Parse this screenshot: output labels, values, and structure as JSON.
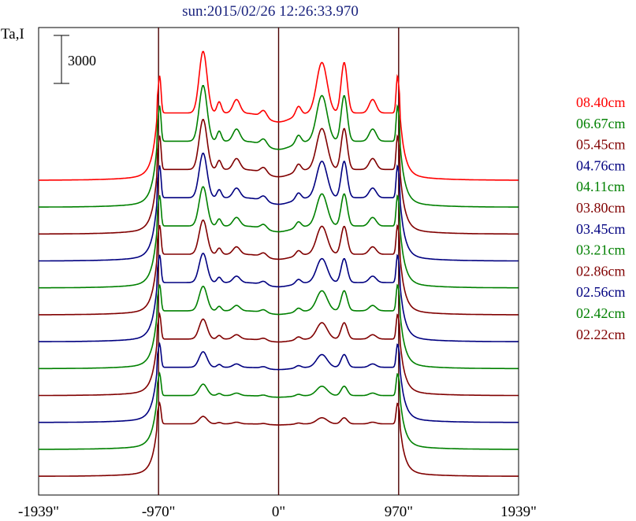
{
  "chart_data": {
    "type": "line",
    "title": "sun:2015/02/26 12:26:33.970",
    "ylabel": "Ta,I",
    "scale_bar_label": "3000",
    "x_ticks": [
      {
        "value": -1939,
        "label": "-1939\""
      },
      {
        "value": -970,
        "label": "-970\""
      },
      {
        "value": 0,
        "label": "0\""
      },
      {
        "value": 970,
        "label": "970\""
      },
      {
        "value": 1939,
        "label": "1939\""
      }
    ],
    "xlim": [
      -1939,
      1939
    ],
    "vertical_lines": [
      -970,
      0,
      970
    ],
    "series": [
      {
        "name": "08.40cm",
        "color": "#ff0000"
      },
      {
        "name": "06.67cm",
        "color": "#008000"
      },
      {
        "name": "05.45cm",
        "color": "#800000"
      },
      {
        "name": "04.76cm",
        "color": "#000080"
      },
      {
        "name": "04.11cm",
        "color": "#008000"
      },
      {
        "name": "03.80cm",
        "color": "#800000"
      },
      {
        "name": "03.45cm",
        "color": "#000080"
      },
      {
        "name": "03.21cm",
        "color": "#008000"
      },
      {
        "name": "02.86cm",
        "color": "#800000"
      },
      {
        "name": "02.56cm",
        "color": "#000080"
      },
      {
        "name": "02.42cm",
        "color": "#008000"
      },
      {
        "name": "02.22cm",
        "color": "#800000"
      }
    ]
  }
}
